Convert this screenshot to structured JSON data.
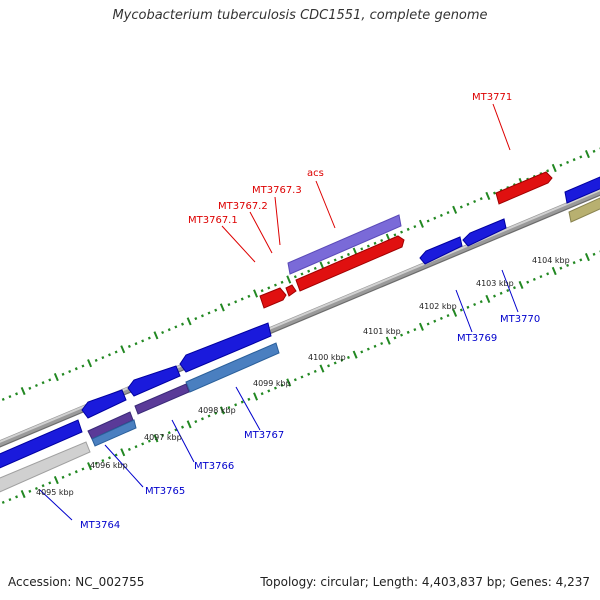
{
  "title": "Mycobacterium tuberculosis CDC1551, complete genome",
  "footer": {
    "accession": "Accession: NC_002755",
    "summary": "Topology: circular; Length: 4,403,837 bp; Genes: 4,237"
  },
  "colors": {
    "forward_label": "#dd0000",
    "reverse_label": "#0000cc",
    "backbone": "#888888",
    "ticks": "#228822",
    "gene_blue": "#1a1adc",
    "gene_red": "#e01010",
    "gene_purple": "#7a6ad8",
    "gene_steel": "#4a7fc0",
    "gene_gray": "#cccccc",
    "gene_olive": "#b8b070"
  },
  "scale_labels": [
    "4095 kbp",
    "4096 kbp",
    "4097 kbp",
    "4098 kbp",
    "4099 kbp",
    "4100 kbp",
    "4101 kbp",
    "4102 kbp",
    "4103 kbp",
    "4104 kbp"
  ],
  "forward_labels": [
    "MT3767.1",
    "MT3767.2",
    "MT3767.3",
    "acs",
    "MT3771"
  ],
  "reverse_labels": [
    "MT3764",
    "MT3765",
    "MT3766",
    "MT3767",
    "MT3769",
    "MT3770"
  ]
}
